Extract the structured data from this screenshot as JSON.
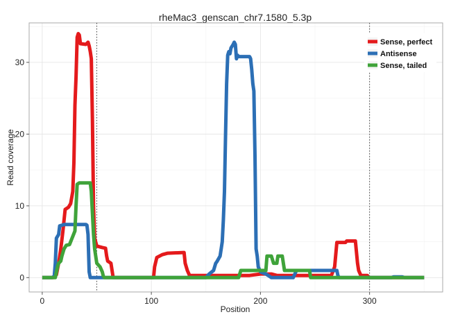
{
  "chart_data": {
    "type": "line",
    "title": "rheMac3_genscan_chr7.1580_5.3p",
    "xlabel": "Position",
    "ylabel": "Read coverage",
    "xlim": [
      -12,
      367
    ],
    "ylim": [
      -2,
      35.5
    ],
    "x_ticks": [
      0,
      100,
      200,
      300
    ],
    "y_ticks": [
      0,
      10,
      20,
      30
    ],
    "vlines": [
      50,
      300
    ],
    "grid": true,
    "legend_position": "top-right",
    "series": [
      {
        "name": "Sense, perfect",
        "color": "#E41A1C",
        "points": [
          [
            0,
            0
          ],
          [
            10,
            0
          ],
          [
            13,
            0.4
          ],
          [
            15,
            2
          ],
          [
            17,
            4
          ],
          [
            19,
            6.5
          ],
          [
            21,
            9.5
          ],
          [
            24,
            9.8
          ],
          [
            26,
            10.3
          ],
          [
            28,
            12
          ],
          [
            29,
            16
          ],
          [
            30,
            24
          ],
          [
            31,
            28
          ],
          [
            32,
            33.5
          ],
          [
            33,
            34
          ],
          [
            34,
            33.8
          ],
          [
            35,
            32.6
          ],
          [
            40,
            32.5
          ],
          [
            42,
            32.8
          ],
          [
            43,
            32.3
          ],
          [
            44,
            31.5
          ],
          [
            45,
            30.5
          ],
          [
            46,
            22
          ],
          [
            47,
            10
          ],
          [
            48,
            5.5
          ],
          [
            50,
            4.4
          ],
          [
            55,
            4.2
          ],
          [
            58,
            4.1
          ],
          [
            59,
            3
          ],
          [
            60,
            2.3
          ],
          [
            63,
            2
          ],
          [
            64,
            1
          ],
          [
            65,
            0
          ],
          [
            102,
            0
          ],
          [
            103,
            1.5
          ],
          [
            105,
            2.8
          ],
          [
            110,
            3.2
          ],
          [
            115,
            3.4
          ],
          [
            130,
            3.5
          ],
          [
            131,
            2
          ],
          [
            133,
            1
          ],
          [
            135,
            0.3
          ],
          [
            170,
            0.3
          ],
          [
            190,
            0.3
          ],
          [
            200,
            0.5
          ],
          [
            210,
            0.5
          ],
          [
            215,
            0.3
          ],
          [
            225,
            0.3
          ],
          [
            265,
            0.3
          ],
          [
            268,
            1.5
          ],
          [
            270,
            4.9
          ],
          [
            278,
            4.9
          ],
          [
            279,
            5.1
          ],
          [
            287,
            5.1
          ],
          [
            289,
            2
          ],
          [
            290,
            1
          ],
          [
            292,
            0.3
          ],
          [
            298,
            0.3
          ],
          [
            299,
            0
          ],
          [
            350,
            0
          ]
        ]
      },
      {
        "name": "Antisense",
        "color": "#2C6FB5",
        "points": [
          [
            0,
            0
          ],
          [
            9,
            0
          ],
          [
            11,
            0.2
          ],
          [
            12,
            2
          ],
          [
            13,
            5.5
          ],
          [
            15,
            6
          ],
          [
            16,
            7.2
          ],
          [
            18,
            7.3
          ],
          [
            20,
            7.4
          ],
          [
            30,
            7.4
          ],
          [
            40,
            7.4
          ],
          [
            41,
            7.3
          ],
          [
            42,
            6
          ],
          [
            43,
            0.8
          ],
          [
            44,
            0
          ],
          [
            50,
            0
          ],
          [
            60,
            0
          ],
          [
            65,
            0
          ],
          [
            150,
            0
          ],
          [
            153,
            0.5
          ],
          [
            157,
            1
          ],
          [
            159,
            2
          ],
          [
            160,
            2.2
          ],
          [
            163,
            3
          ],
          [
            164,
            4
          ],
          [
            165,
            5
          ],
          [
            166,
            8
          ],
          [
            167,
            12
          ],
          [
            168,
            20
          ],
          [
            169,
            27
          ],
          [
            170,
            31
          ],
          [
            171,
            31.5
          ],
          [
            172,
            31.2
          ],
          [
            173,
            32
          ],
          [
            175,
            32.5
          ],
          [
            176,
            32.8
          ],
          [
            177,
            32.5
          ],
          [
            178,
            30.5
          ],
          [
            179,
            31
          ],
          [
            180,
            30.8
          ],
          [
            190,
            30.8
          ],
          [
            191,
            30.5
          ],
          [
            192,
            29
          ],
          [
            193,
            27
          ],
          [
            194,
            26
          ],
          [
            195,
            17
          ],
          [
            196,
            4
          ],
          [
            197,
            3
          ],
          [
            198,
            1.5
          ],
          [
            200,
            0.8
          ],
          [
            205,
            0.5
          ],
          [
            208,
            0.2
          ],
          [
            210,
            0
          ],
          [
            230,
            0
          ],
          [
            233,
            1
          ],
          [
            270,
            1
          ],
          [
            271,
            0.3
          ],
          [
            272,
            0
          ],
          [
            320,
            0
          ],
          [
            322,
            0.1
          ],
          [
            330,
            0.1
          ],
          [
            332,
            0
          ],
          [
            350,
            0
          ]
        ]
      },
      {
        "name": "Sense, tailed",
        "color": "#3FA33A",
        "points": [
          [
            0,
            0
          ],
          [
            12,
            0
          ],
          [
            14,
            1.5
          ],
          [
            15,
            2
          ],
          [
            17,
            2.3
          ],
          [
            18,
            3
          ],
          [
            20,
            4
          ],
          [
            22,
            4.5
          ],
          [
            25,
            4.6
          ],
          [
            30,
            6.5
          ],
          [
            31,
            10
          ],
          [
            32,
            13
          ],
          [
            34,
            13.2
          ],
          [
            44,
            13.2
          ],
          [
            45,
            12
          ],
          [
            46,
            9
          ],
          [
            47,
            6
          ],
          [
            48,
            4
          ],
          [
            50,
            2
          ],
          [
            53,
            1.5
          ],
          [
            55,
            0.8
          ],
          [
            56,
            0.2
          ],
          [
            57,
            0
          ],
          [
            170,
            0
          ],
          [
            180,
            0
          ],
          [
            182,
            1
          ],
          [
            205,
            1
          ],
          [
            206,
            3
          ],
          [
            210,
            3
          ],
          [
            212,
            2
          ],
          [
            215,
            2
          ],
          [
            216,
            3
          ],
          [
            220,
            3
          ],
          [
            222,
            1
          ],
          [
            240,
            1
          ],
          [
            245,
            1
          ],
          [
            246,
            0
          ],
          [
            350,
            0
          ]
        ]
      }
    ]
  }
}
